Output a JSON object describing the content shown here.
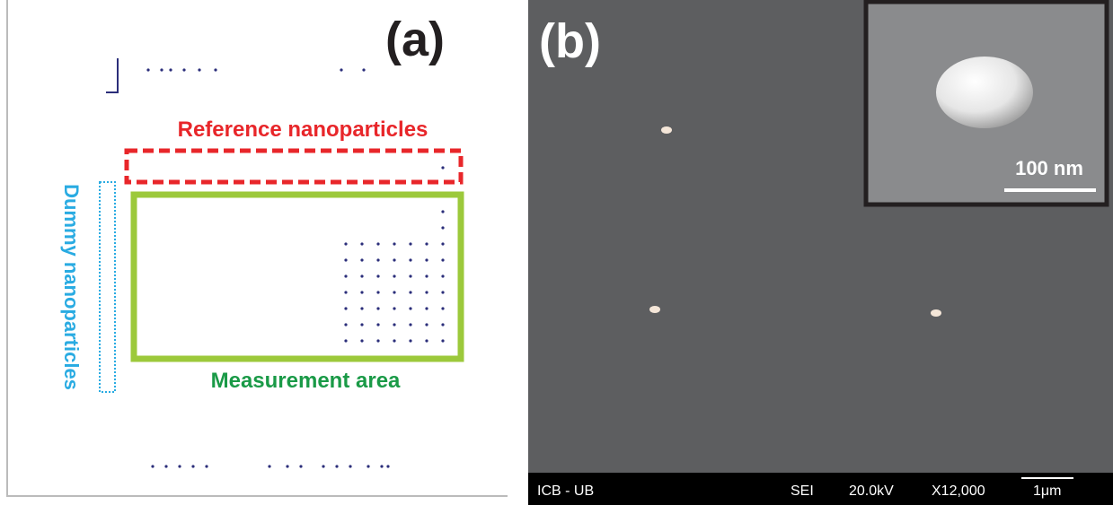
{
  "panel_a": {
    "label": "(a)",
    "reference": "Reference nanoparticles",
    "dummy": "Dummy nanoparticles",
    "measurement": "Measurement area"
  },
  "panel_b": {
    "label": "(b)",
    "inset_scale": "100 nm",
    "info_bar": [
      "ICB - UB",
      "SEI",
      "20.0kV",
      "X12,000",
      "1μm"
    ]
  }
}
